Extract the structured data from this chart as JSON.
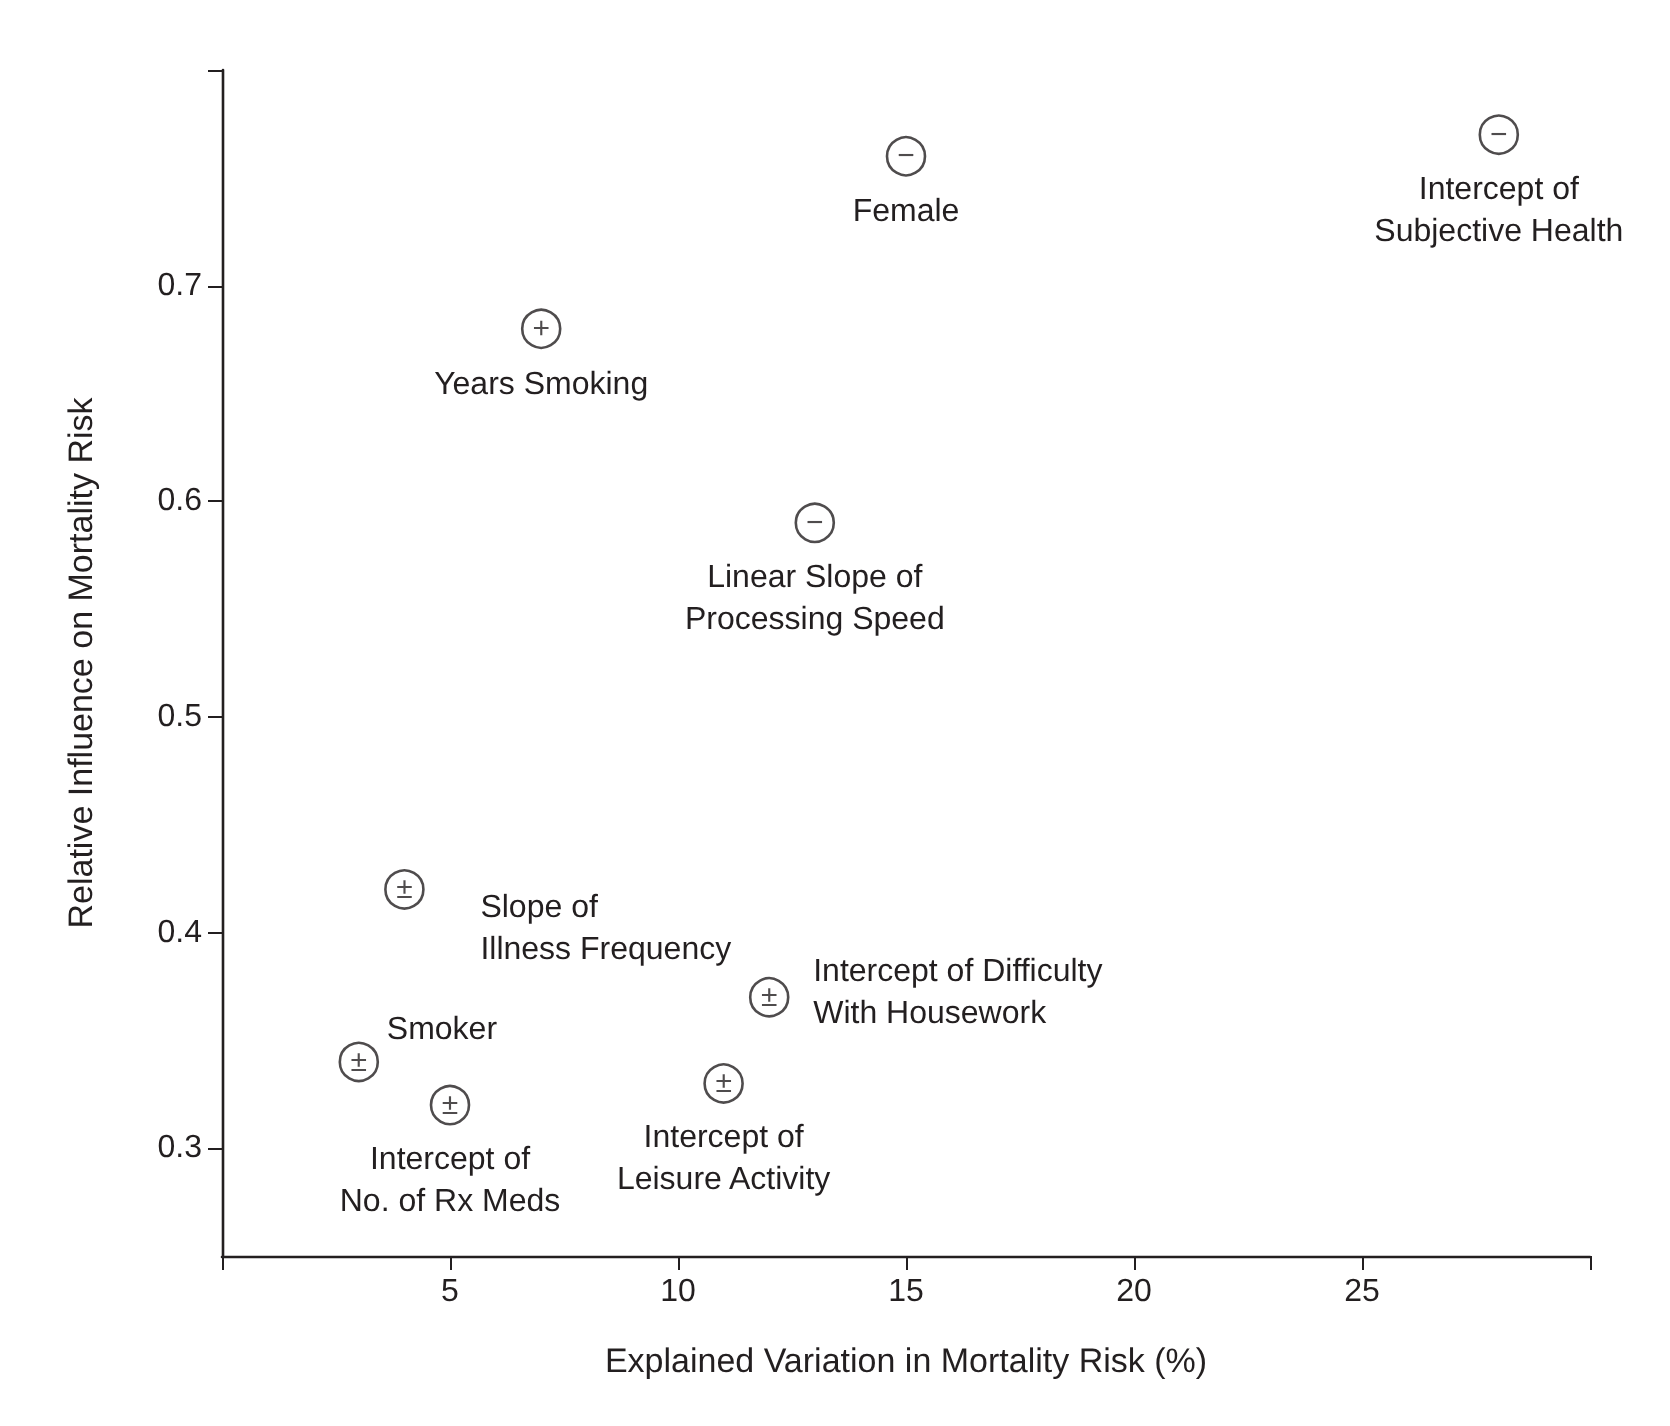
{
  "chart_data": {
    "type": "scatter",
    "xlabel": "Explained Variation in Mortality Risk (%)",
    "ylabel": "Relative Influence on Mortality Risk",
    "x": [
      15,
      28,
      7,
      13,
      4,
      12,
      3,
      5,
      11
    ],
    "values": [
      0.76,
      0.77,
      0.68,
      0.59,
      0.42,
      0.37,
      0.34,
      0.32,
      0.33
    ],
    "value_labels": [
      "−",
      "−",
      "+",
      "−",
      "±",
      "±",
      "±",
      "±",
      "±"
    ],
    "color": "#231f20",
    "marker": "circle",
    "xlim": [
      0,
      30
    ],
    "xticks": [
      {
        "value": 0,
        "label": null
      },
      5,
      10,
      15,
      20,
      25,
      {
        "value": 30,
        "label": null
      }
    ],
    "ylim": [
      0.25,
      0.8
    ],
    "yticks": [
      0.3,
      0.4,
      0.5,
      0.6,
      0.7,
      {
        "value": 0.8,
        "label": null
      }
    ],
    "annotations": [
      {
        "text": "Female",
        "x": 15,
        "y": 0.76
      },
      {
        "text": "Intercept of\nSubjective Health",
        "x": 28,
        "y": 0.77
      },
      {
        "text": "Years Smoking",
        "x": 7,
        "y": 0.68
      },
      {
        "text": "Linear Slope of\nProcessing Speed",
        "x": 13,
        "y": 0.59
      },
      {
        "text": "Slope of\nIllness Frequency",
        "x": 4,
        "y": 0.42
      },
      {
        "text": "Intercept of Difficulty\nWith Housework",
        "x": 12,
        "y": 0.37
      },
      {
        "text": "Smoker",
        "x": 3,
        "y": 0.34
      },
      {
        "text": "Intercept of\nNo. of Rx Meds",
        "x": 5,
        "y": 0.32
      },
      {
        "text": "Intercept of\nLeisure Activity",
        "x": 11,
        "y": 0.33
      }
    ]
  }
}
